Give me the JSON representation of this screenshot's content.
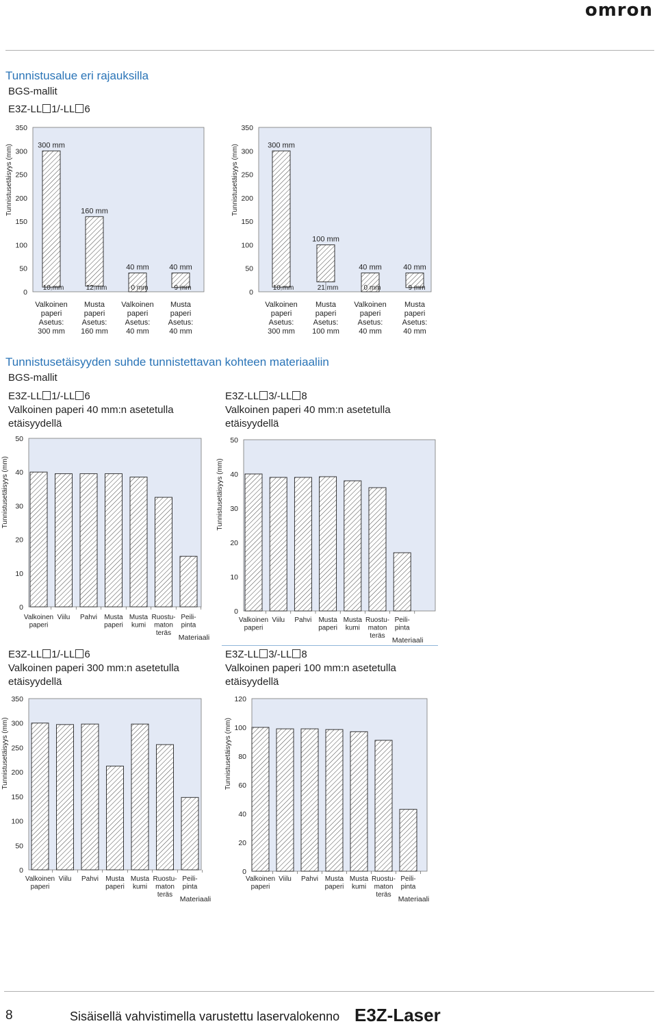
{
  "brand": "omron",
  "section1": {
    "title": "Tunnistusalue eri rajauksilla",
    "subtitle": "BGS-mallit",
    "model_label": {
      "p1": "E3Z-LL",
      "p2": "1/-LL",
      "p3": "6"
    }
  },
  "section2": {
    "title": "Tunnistusetäisyyden suhde tunnistettavan kohteen materiaaliin",
    "subtitle": "BGS-mallit",
    "blocks": [
      {
        "model": {
          "p1": "E3Z-LL",
          "p2": "1/-LL",
          "p3": "6"
        },
        "line1": "Valkoinen paperi 40 mm:n asetetulla",
        "line2": "etäisyydellä"
      },
      {
        "model": {
          "p1": "E3Z-LL",
          "p2": "3/-LL",
          "p3": "8"
        },
        "line1": "Valkoinen paperi 40 mm:n asetetulla",
        "line2": "etäisyydellä"
      },
      {
        "model": {
          "p1": "E3Z-LL",
          "p2": "1/-LL",
          "p3": "6"
        },
        "line1": "Valkoinen paperi 300 mm:n asetetulla",
        "line2": "etäisyydellä"
      },
      {
        "model": {
          "p1": "E3Z-LL",
          "p2": "3/-LL",
          "p3": "8"
        },
        "line1": "Valkoinen paperi 100 mm:n asetetulla",
        "line2": "etäisyydellä"
      }
    ]
  },
  "footer": {
    "page_number": "8",
    "text": "Sisäisellä vahvistimella varustettu laservalokenno",
    "product": "E3Z-Laser"
  },
  "colors": {
    "plot_bg": "#e3e9f5",
    "title_blue": "#2a74b7",
    "bar_fill": "#ffffff",
    "hatch": "#333333"
  },
  "chart_data": [
    {
      "type": "bar",
      "ylabel": "Tunnistusetäisyys (mm)",
      "ylim": [
        0,
        350
      ],
      "yticks": [
        "0",
        "50",
        "100",
        "150",
        "200",
        "250",
        "300",
        "350"
      ],
      "categories": [
        {
          "lines": [
            "Valkoinen",
            "paperi",
            "Asetus:",
            "300 mm"
          ]
        },
        {
          "lines": [
            "Musta",
            "paperi",
            "Asetus:",
            "160 mm"
          ]
        },
        {
          "lines": [
            "Valkoinen",
            "paperi",
            "Asetus:",
            "40 mm"
          ]
        },
        {
          "lines": [
            "Musta",
            "paperi",
            "Asetus:",
            "40 mm"
          ]
        }
      ],
      "bars": [
        {
          "min": 10,
          "max": 300,
          "min_label": "10 mm",
          "max_label": "300 mm"
        },
        {
          "min": 12,
          "max": 160,
          "min_label": "12 mm",
          "max_label": "160 mm"
        },
        {
          "min": 0,
          "max": 40,
          "min_label": "0 mm",
          "max_label": "40 mm"
        },
        {
          "min": 9,
          "max": 40,
          "min_label": "9 mm",
          "max_label": "40 mm"
        }
      ],
      "grid": false
    },
    {
      "type": "bar",
      "ylabel": "Tunnistusetäisyys (mm)",
      "ylim": [
        0,
        350
      ],
      "yticks": [
        "0",
        "50",
        "100",
        "150",
        "200",
        "250",
        "300",
        "350"
      ],
      "categories": [
        {
          "lines": [
            "Valkoinen",
            "paperi",
            "Asetus:",
            "300 mm"
          ]
        },
        {
          "lines": [
            "Musta",
            "paperi",
            "Asetus:",
            "100 mm"
          ]
        },
        {
          "lines": [
            "Valkoinen",
            "paperi",
            "Asetus:",
            "40 mm"
          ]
        },
        {
          "lines": [
            "Musta",
            "paperi",
            "Asetus:",
            "40 mm"
          ]
        }
      ],
      "bars": [
        {
          "min": 10,
          "max": 300,
          "min_label": "10 mm",
          "max_label": "300 mm"
        },
        {
          "min": 21,
          "max": 100,
          "min_label": "21 mm",
          "max_label": "100 mm"
        },
        {
          "min": 0,
          "max": 40,
          "min_label": "0 mm",
          "max_label": "40 mm"
        },
        {
          "min": 9,
          "max": 40,
          "min_label": "9 mm",
          "max_label": "40 mm"
        }
      ],
      "grid": false
    },
    {
      "type": "bar",
      "ylabel": "Tunnistusetäisyys (mm)",
      "xlabel": "Materiaali",
      "ylim": [
        0,
        50
      ],
      "yticks": [
        "0",
        "10",
        "20",
        "30",
        "40",
        "50"
      ],
      "categories": [
        {
          "lines": [
            "Valkoinen",
            "paperi"
          ]
        },
        {
          "lines": [
            "Viilu"
          ]
        },
        {
          "lines": [
            "Pahvi"
          ]
        },
        {
          "lines": [
            "Musta",
            "paperi"
          ]
        },
        {
          "lines": [
            "Musta",
            "kumi"
          ]
        },
        {
          "lines": [
            "Ruostu-",
            "maton",
            "teräs"
          ]
        },
        {
          "lines": [
            "Peili-",
            "pinta"
          ]
        }
      ],
      "values": [
        40,
        39.5,
        39.5,
        39.5,
        38.5,
        32.5,
        15
      ],
      "grid": false
    },
    {
      "type": "bar",
      "ylabel": "Tunnistusetäisyys (mm)",
      "xlabel": "Materiaali",
      "ylim": [
        0,
        50
      ],
      "yticks": [
        "0",
        "10",
        "20",
        "30",
        "40",
        "50"
      ],
      "categories": [
        {
          "lines": [
            "Valkoinen",
            "paperi"
          ]
        },
        {
          "lines": [
            "Viilu"
          ]
        },
        {
          "lines": [
            "Pahvi"
          ]
        },
        {
          "lines": [
            "Musta",
            "paperi"
          ]
        },
        {
          "lines": [
            "Musta",
            "kumi"
          ]
        },
        {
          "lines": [
            "Ruostu-",
            "maton",
            "teräs"
          ]
        },
        {
          "lines": [
            "Peili-",
            "pinta"
          ]
        }
      ],
      "values": [
        40,
        39,
        39,
        39.2,
        38,
        36,
        17
      ],
      "grid": false
    },
    {
      "type": "bar",
      "ylabel": "Tunnistusetäisyys (mm)",
      "xlabel": "Materiaali",
      "ylim": [
        0,
        350
      ],
      "yticks": [
        "0",
        "50",
        "100",
        "150",
        "200",
        "250",
        "300",
        "350"
      ],
      "categories": [
        {
          "lines": [
            "Valkoinen",
            "paperi"
          ]
        },
        {
          "lines": [
            "Viilu"
          ]
        },
        {
          "lines": [
            "Pahvi"
          ]
        },
        {
          "lines": [
            "Musta",
            "paperi"
          ]
        },
        {
          "lines": [
            "Musta",
            "kumi"
          ]
        },
        {
          "lines": [
            "Ruostu-",
            "maton",
            "teräs"
          ]
        },
        {
          "lines": [
            "Peili-",
            "pinta"
          ]
        }
      ],
      "values": [
        300,
        297,
        298,
        212,
        298,
        256,
        148
      ],
      "grid": false
    },
    {
      "type": "bar",
      "ylabel": "Tunnistusetäisyys (mm)",
      "xlabel": "Materiaali",
      "ylim": [
        0,
        120
      ],
      "yticks": [
        "0",
        "20",
        "40",
        "60",
        "80",
        "100",
        "120"
      ],
      "categories": [
        {
          "lines": [
            "Valkoinen",
            "paperi"
          ]
        },
        {
          "lines": [
            "Viilu"
          ]
        },
        {
          "lines": [
            "Pahvi"
          ]
        },
        {
          "lines": [
            "Musta",
            "paperi"
          ]
        },
        {
          "lines": [
            "Musta",
            "kumi"
          ]
        },
        {
          "lines": [
            "Ruostu-",
            "maton",
            "teräs"
          ]
        },
        {
          "lines": [
            "Peili-",
            "pinta"
          ]
        }
      ],
      "values": [
        100,
        99,
        99,
        98.5,
        97,
        91,
        43
      ],
      "grid": false
    }
  ]
}
